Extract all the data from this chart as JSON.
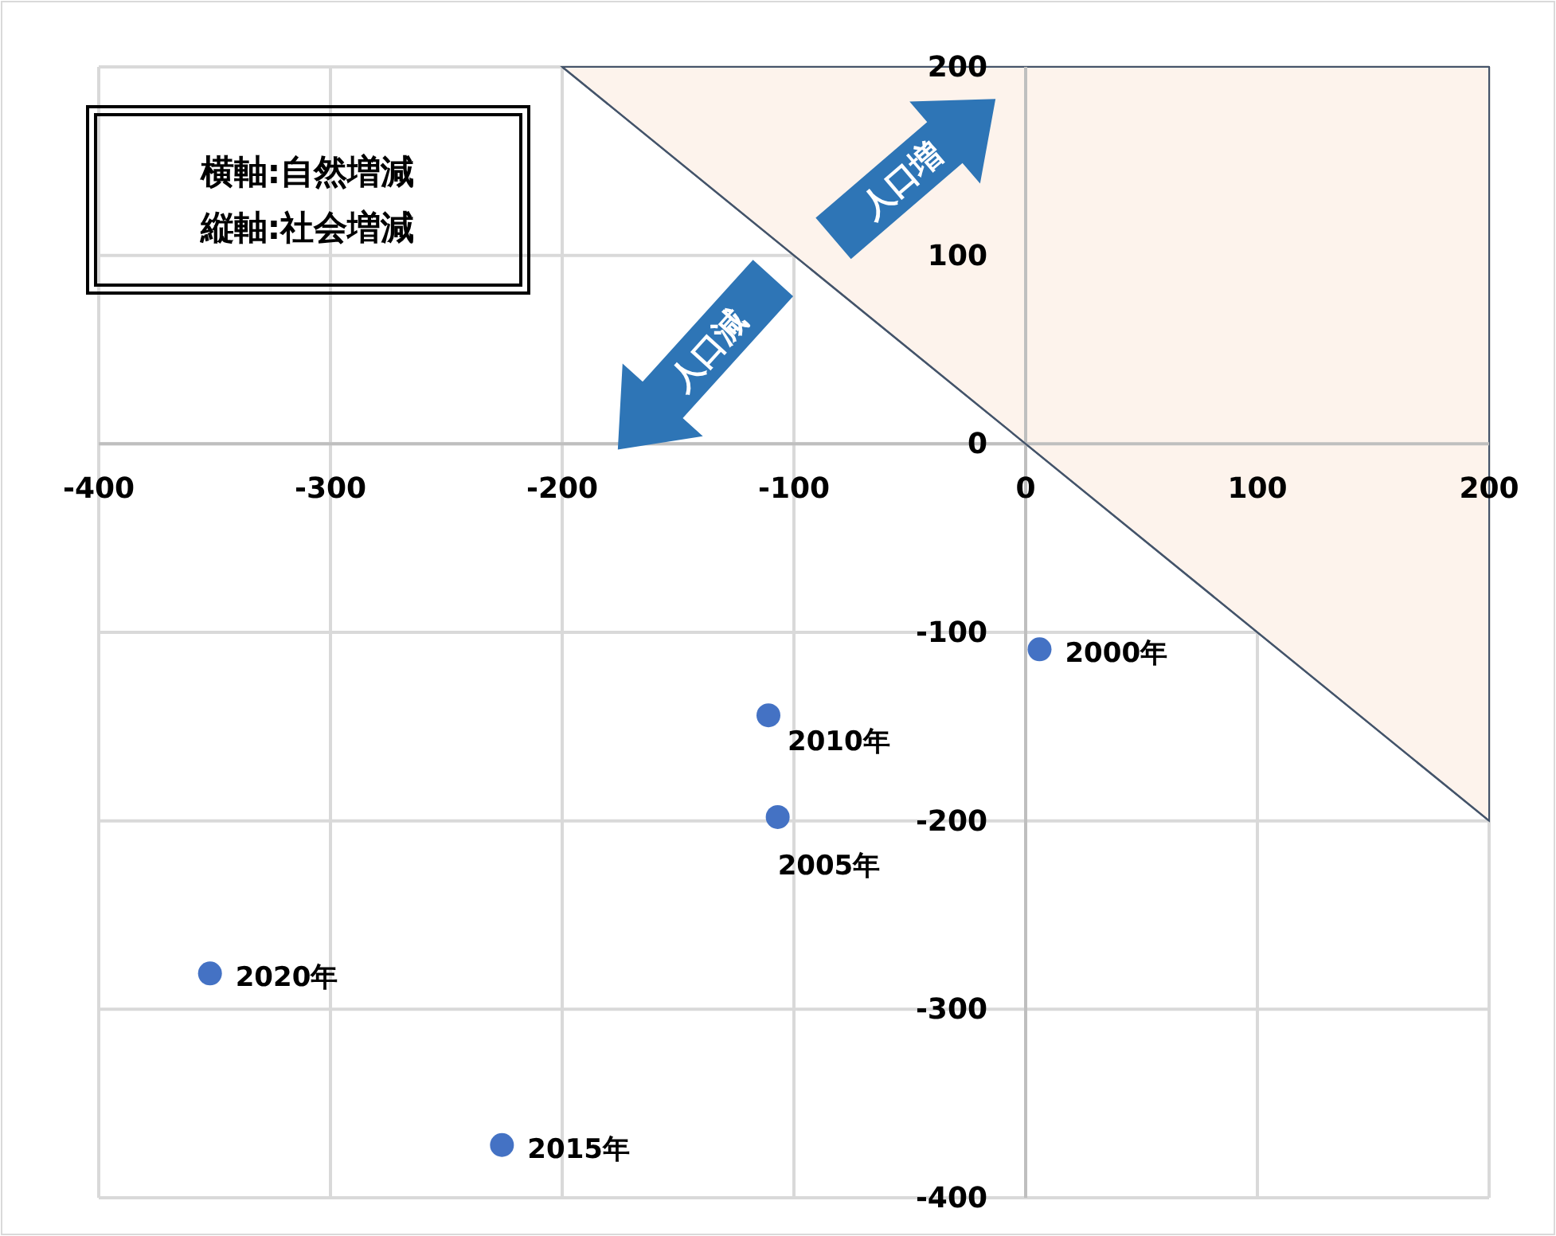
{
  "chart_data": {
    "type": "scatter",
    "annotations": [
      "横軸:自然増減",
      "縦軸:社会増減",
      "人口増",
      "人口減",
      {
        "text": "2000年",
        "x": 6,
        "y": -109
      },
      {
        "text": "2005年",
        "x": -107,
        "y": -198
      },
      {
        "text": "2010年",
        "x": -111,
        "y": -144
      },
      {
        "text": "2015年",
        "x": -226,
        "y": -372
      },
      {
        "text": "2020年",
        "x": -352,
        "y": -281
      }
    ],
    "series": [
      {
        "color": "#4472c4",
        "x": [
          6,
          -107,
          -111,
          -226,
          -352
        ],
        "values": [
          -109,
          -198,
          -144,
          -372,
          -281
        ]
      },
      {
        "type": "line",
        "color": "#44546a",
        "marker": "none",
        "x": [
          -200,
          200
        ],
        "values": [
          200,
          -200
        ]
      }
    ],
    "xlim": [
      -400,
      200
    ],
    "ylim": [
      -400,
      200
    ],
    "xticks": [
      -400,
      -300,
      -200,
      -100,
      0,
      100,
      200
    ],
    "yticks": [
      -400,
      -300,
      -200,
      -100,
      0,
      100,
      200
    ],
    "grid": true,
    "marker": "circle"
  }
}
